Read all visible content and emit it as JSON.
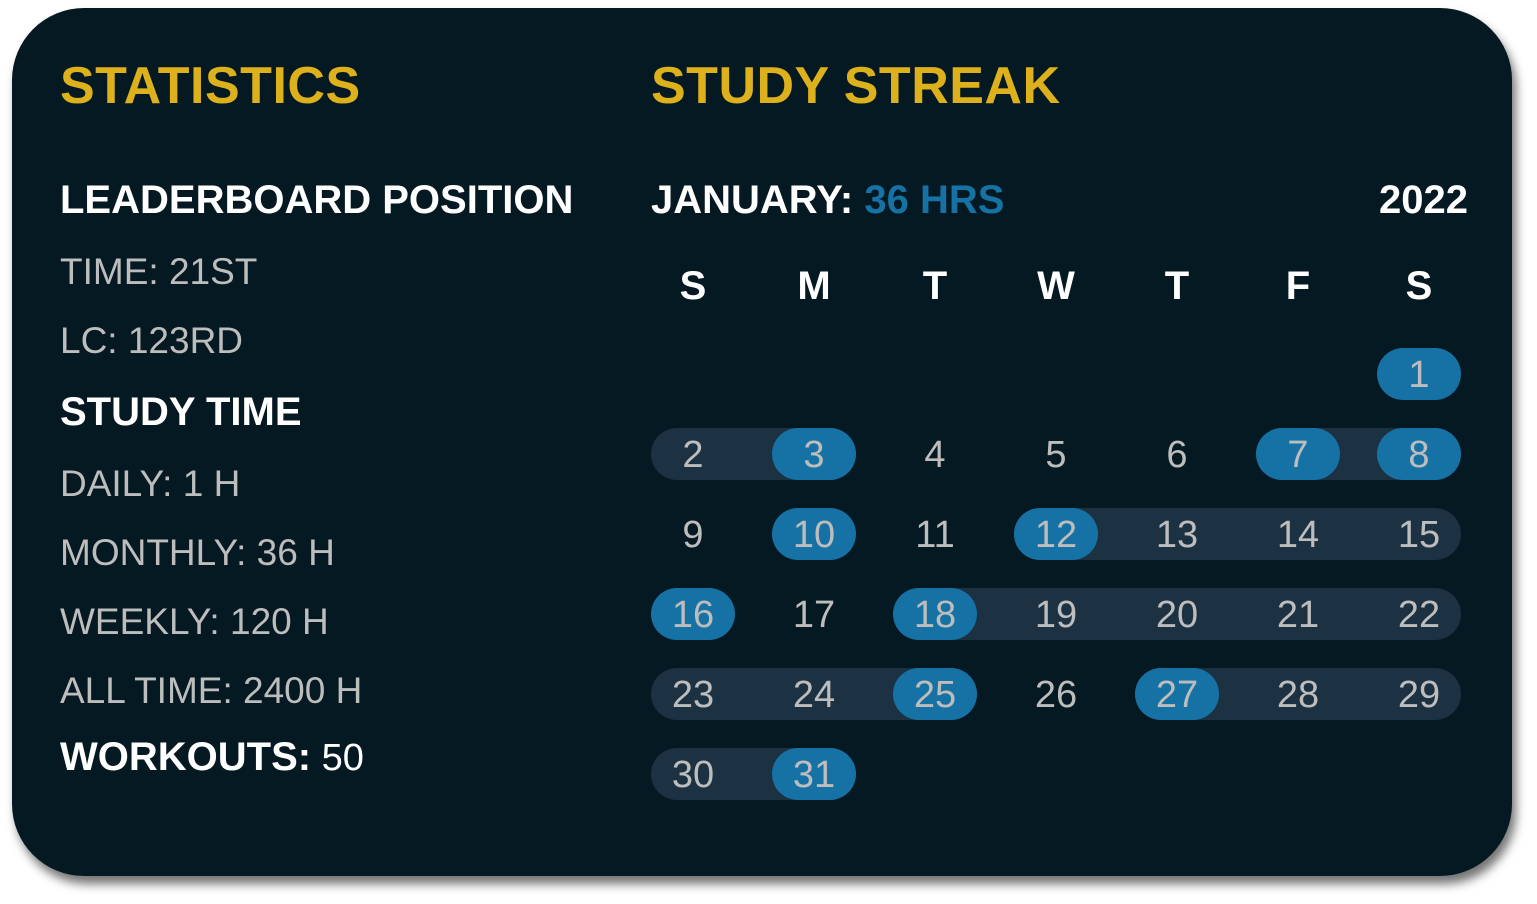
{
  "statistics": {
    "title": "STATISTICS",
    "leaderboard_heading": "LEADERBOARD POSITION",
    "time_rank": "TIME: 21ST",
    "lc_rank": "LC: 123RD",
    "study_time_heading": "STUDY TIME",
    "daily": "DAILY: 1 H",
    "monthly": "MONTHLY: 36 H",
    "weekly": "WEEKLY: 120 H",
    "all_time": "ALL TIME: 2400 H",
    "workouts_label": "WORKOUTS:",
    "workouts_value": " 50"
  },
  "streak": {
    "title": "STUDY STREAK",
    "month_label": "JANUARY:",
    "month_hours": " 36 HRS",
    "year": "2022",
    "weekdays": [
      "S",
      "M",
      "T",
      "W",
      "T",
      "F",
      "S"
    ],
    "days_in_month": 31,
    "first_weekday_index": 6,
    "highlighted_days": [
      1,
      3,
      7,
      8,
      10,
      12,
      16,
      18,
      25,
      27,
      31
    ],
    "streak_ranges": [
      [
        2,
        3
      ],
      [
        7,
        8
      ],
      [
        12,
        15
      ],
      [
        18,
        22
      ],
      [
        23,
        25
      ],
      [
        27,
        29
      ],
      [
        30,
        31
      ]
    ],
    "colors": {
      "highlight": "#1672A4",
      "streak": "#1C3142",
      "accent": "#DDB11B"
    }
  }
}
